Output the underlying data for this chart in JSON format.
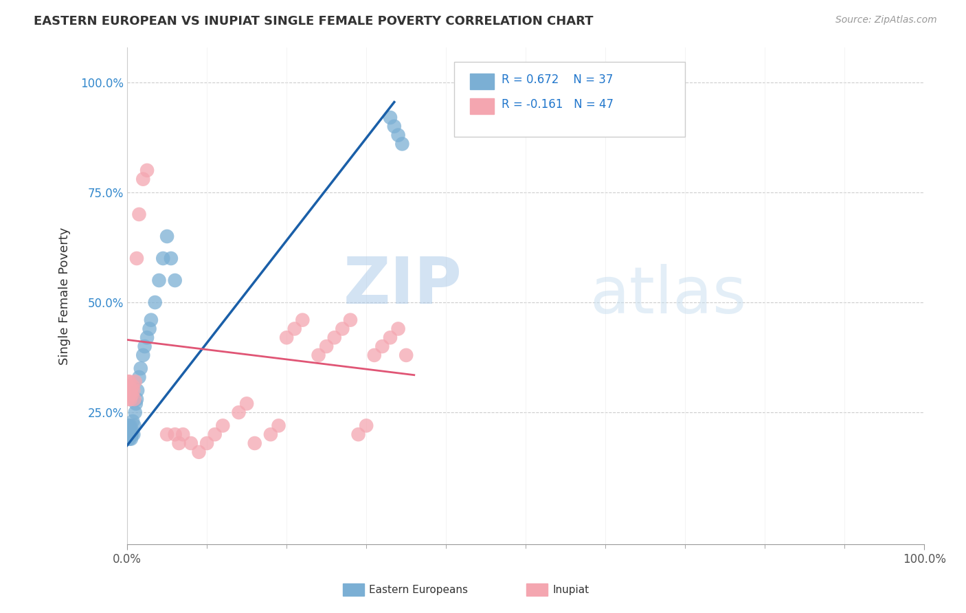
{
  "title": "EASTERN EUROPEAN VS INUPIAT SINGLE FEMALE POVERTY CORRELATION CHART",
  "source": "Source: ZipAtlas.com",
  "ylabel": "Single Female Poverty",
  "watermark_zip": "ZIP",
  "watermark_atlas": "atlas",
  "ee_color": "#7bafd4",
  "in_color": "#f4a6b0",
  "ee_line_color": "#1a5fa8",
  "in_line_color": "#e05575",
  "background_color": "#ffffff",
  "grid_color": "#cccccc",
  "ee_R": 0.672,
  "ee_N": 37,
  "in_R": -0.161,
  "in_N": 47,
  "xlim": [
    0.0,
    1.0
  ],
  "ylim": [
    -0.05,
    1.05
  ],
  "ee_x": [
    0.001,
    0.001,
    0.001,
    0.002,
    0.002,
    0.003,
    0.003,
    0.004,
    0.004,
    0.005,
    0.005,
    0.006,
    0.006,
    0.007,
    0.008,
    0.009,
    0.01,
    0.011,
    0.012,
    0.013,
    0.015,
    0.017,
    0.02,
    0.022,
    0.025,
    0.028,
    0.03,
    0.035,
    0.04,
    0.045,
    0.05,
    0.055,
    0.06,
    0.33,
    0.335,
    0.34,
    0.345
  ],
  "ee_y": [
    0.2,
    0.21,
    0.19,
    0.2,
    0.22,
    0.19,
    0.21,
    0.2,
    0.22,
    0.2,
    0.19,
    0.21,
    0.2,
    0.23,
    0.2,
    0.22,
    0.25,
    0.27,
    0.28,
    0.3,
    0.33,
    0.35,
    0.38,
    0.4,
    0.42,
    0.44,
    0.46,
    0.5,
    0.55,
    0.6,
    0.65,
    0.6,
    0.55,
    0.92,
    0.9,
    0.88,
    0.86
  ],
  "in_x": [
    0.001,
    0.001,
    0.001,
    0.002,
    0.002,
    0.003,
    0.003,
    0.004,
    0.005,
    0.006,
    0.007,
    0.008,
    0.009,
    0.01,
    0.012,
    0.015,
    0.02,
    0.025,
    0.05,
    0.06,
    0.065,
    0.07,
    0.08,
    0.09,
    0.1,
    0.11,
    0.12,
    0.14,
    0.15,
    0.16,
    0.18,
    0.19,
    0.2,
    0.21,
    0.22,
    0.24,
    0.25,
    0.26,
    0.27,
    0.28,
    0.29,
    0.3,
    0.31,
    0.32,
    0.33,
    0.34,
    0.35
  ],
  "in_y": [
    0.3,
    0.32,
    0.28,
    0.29,
    0.31,
    0.3,
    0.32,
    0.28,
    0.3,
    0.29,
    0.31,
    0.3,
    0.28,
    0.32,
    0.6,
    0.7,
    0.78,
    0.8,
    0.2,
    0.2,
    0.18,
    0.2,
    0.18,
    0.16,
    0.18,
    0.2,
    0.22,
    0.25,
    0.27,
    0.18,
    0.2,
    0.22,
    0.42,
    0.44,
    0.46,
    0.38,
    0.4,
    0.42,
    0.44,
    0.46,
    0.2,
    0.22,
    0.38,
    0.4,
    0.42,
    0.44,
    0.38
  ]
}
